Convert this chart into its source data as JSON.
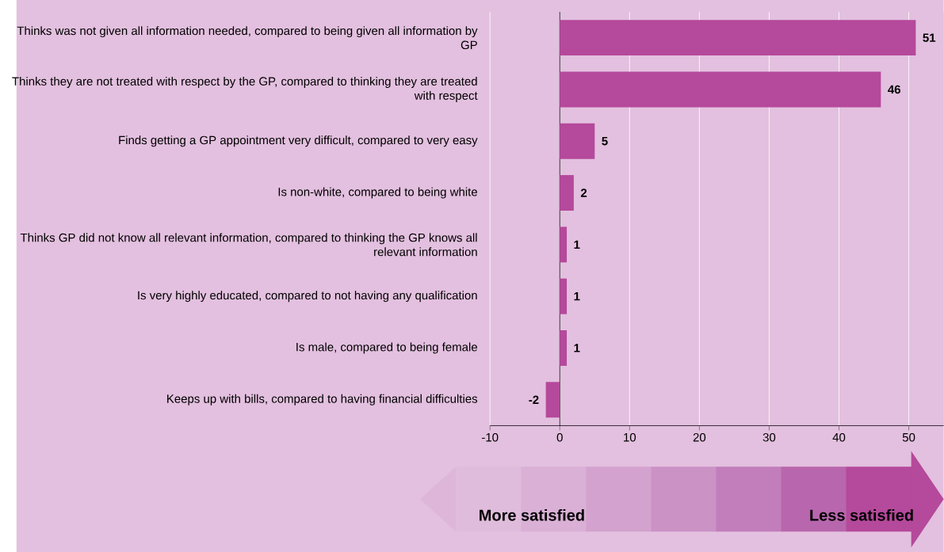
{
  "chart_data": {
    "type": "bar",
    "orientation": "horizontal",
    "categories": [
      "Thinks was not given all information needed, compared to being given all information by GP",
      "Thinks they are not treated with respect by the GP, compared to thinking they are treated with respect",
      "Finds getting a GP appointment very difficult, compared to very easy",
      "Is non-white, compared to being white",
      "Thinks GP did not know all relevant information, compared to thinking the GP knows all relevant information",
      "Is very highly educated, compared to not having any qualification",
      "Is male, compared to being female",
      "Keeps up with bills, compared to having financial difficulties"
    ],
    "values": [
      51,
      46,
      5,
      2,
      1,
      1,
      1,
      -2
    ],
    "color": "#b5499b",
    "xlim": [
      -10,
      55
    ],
    "xticks": [
      -10,
      0,
      10,
      20,
      30,
      40,
      50
    ],
    "grid": "x",
    "data_labels": true,
    "annotations": [
      "More satisfied",
      "Less satisfied"
    ]
  }
}
